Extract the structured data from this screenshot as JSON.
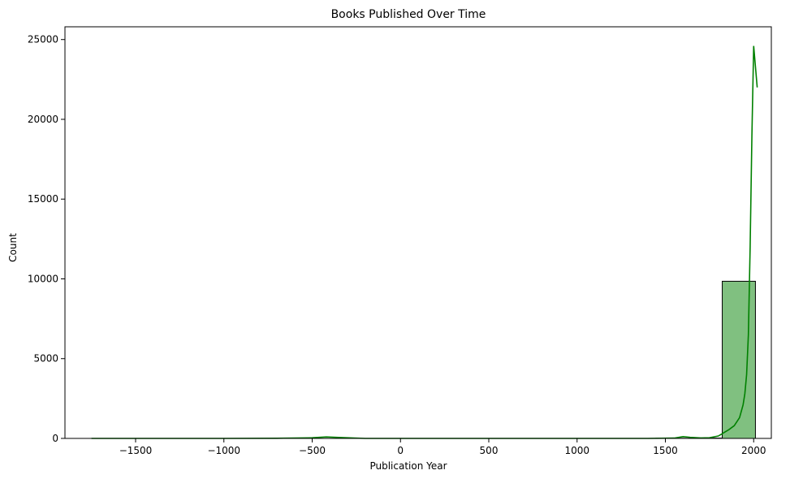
{
  "chart_data": {
    "type": "histogram",
    "title": "Books Published Over Time",
    "xlabel": "Publication Year",
    "ylabel": "Count",
    "xlim": [
      -1900,
      2100
    ],
    "ylim": [
      0,
      25800
    ],
    "xticks": [
      -1500,
      -1000,
      -500,
      0,
      500,
      1000,
      1500,
      2000
    ],
    "yticks": [
      0,
      5000,
      10000,
      15000,
      20000,
      25000
    ],
    "grid": false,
    "bars": [
      {
        "x_start": -1750,
        "x_end": -1562,
        "value": 0
      },
      {
        "x_start": -1562,
        "x_end": -1374,
        "value": 0
      },
      {
        "x_start": -1374,
        "x_end": -1186,
        "value": 0
      },
      {
        "x_start": -1186,
        "x_end": -998,
        "value": 0
      },
      {
        "x_start": -998,
        "x_end": -810,
        "value": 0
      },
      {
        "x_start": -810,
        "x_end": -622,
        "value": 0
      },
      {
        "x_start": -622,
        "x_end": -434,
        "value": 0
      },
      {
        "x_start": -434,
        "x_end": -246,
        "value": 0
      },
      {
        "x_start": -246,
        "x_end": -58,
        "value": 0
      },
      {
        "x_start": -58,
        "x_end": 130,
        "value": 0
      },
      {
        "x_start": 130,
        "x_end": 318,
        "value": 0
      },
      {
        "x_start": 318,
        "x_end": 506,
        "value": 0
      },
      {
        "x_start": 506,
        "x_end": 694,
        "value": 0
      },
      {
        "x_start": 694,
        "x_end": 882,
        "value": 0
      },
      {
        "x_start": 882,
        "x_end": 1070,
        "value": 0
      },
      {
        "x_start": 1070,
        "x_end": 1258,
        "value": 0
      },
      {
        "x_start": 1258,
        "x_end": 1446,
        "value": 0
      },
      {
        "x_start": 1446,
        "x_end": 1634,
        "value": 10
      },
      {
        "x_start": 1634,
        "x_end": 1822,
        "value": 20
      },
      {
        "x_start": 1822,
        "x_end": 2010,
        "value": 9850
      }
    ],
    "kde": {
      "x": [
        -1750,
        -1500,
        -1000,
        -700,
        -500,
        -420,
        -350,
        -200,
        0,
        500,
        1000,
        1400,
        1550,
        1600,
        1640,
        1700,
        1750,
        1800,
        1830,
        1860,
        1890,
        1920,
        1940,
        1950,
        1960,
        1970,
        1980,
        1990,
        2000,
        2020
      ],
      "y": [
        0,
        0,
        0,
        10,
        40,
        90,
        60,
        0,
        0,
        0,
        0,
        0,
        20,
        110,
        70,
        30,
        40,
        150,
        350,
        550,
        800,
        1300,
        2100,
        2800,
        4000,
        6500,
        12000,
        19000,
        24600,
        22000
      ]
    },
    "colors": {
      "bar_fill": "#80c080",
      "bar_edge": "#000000",
      "line": "#008000"
    }
  }
}
